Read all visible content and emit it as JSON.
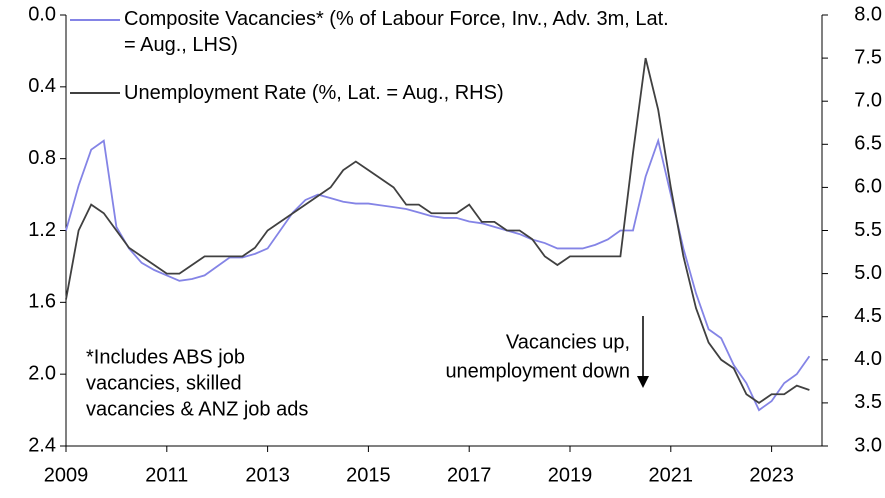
{
  "chart_data": {
    "type": "line",
    "x": [
      2009,
      2009.25,
      2009.5,
      2009.75,
      2010,
      2010.25,
      2010.5,
      2010.75,
      2011,
      2011.25,
      2011.5,
      2011.75,
      2012,
      2012.25,
      2012.5,
      2012.75,
      2013,
      2013.25,
      2013.5,
      2013.75,
      2014,
      2014.25,
      2014.5,
      2014.75,
      2015,
      2015.25,
      2015.5,
      2015.75,
      2016,
      2016.25,
      2016.5,
      2016.75,
      2017,
      2017.25,
      2017.5,
      2017.75,
      2018,
      2018.25,
      2018.5,
      2018.75,
      2019,
      2019.25,
      2019.5,
      2019.75,
      2020,
      2020.25,
      2020.5,
      2020.75,
      2021,
      2021.25,
      2021.5,
      2021.75,
      2022,
      2022.25,
      2022.5,
      2022.75,
      2023,
      2023.25,
      2023.5,
      2023.75
    ],
    "series": [
      {
        "name": "Composite Vacancies* (% of Labour Force, Inv., Adv. 3m, Lat. = Aug., LHS)",
        "color": "#8484e6",
        "values": [
          1.2,
          0.95,
          0.75,
          0.7,
          1.18,
          1.3,
          1.38,
          1.42,
          1.45,
          1.48,
          1.47,
          1.45,
          1.4,
          1.35,
          1.35,
          1.33,
          1.3,
          1.2,
          1.1,
          1.03,
          1.0,
          1.02,
          1.04,
          1.05,
          1.05,
          1.06,
          1.07,
          1.08,
          1.1,
          1.12,
          1.13,
          1.13,
          1.15,
          1.16,
          1.18,
          1.2,
          1.22,
          1.25,
          1.27,
          1.3,
          1.3,
          1.3,
          1.28,
          1.25,
          1.2,
          1.2,
          0.9,
          0.7,
          1.0,
          1.3,
          1.55,
          1.75,
          1.8,
          1.95,
          2.05,
          2.2,
          2.15,
          2.05,
          2.0,
          1.9
        ]
      },
      {
        "name": "Unemployment Rate (%, Lat. = Aug., RHS)",
        "color": "#404040",
        "axis": "y2",
        "values": [
          4.7,
          5.5,
          5.8,
          5.7,
          5.5,
          5.3,
          5.2,
          5.1,
          5.0,
          5.0,
          5.1,
          5.2,
          5.2,
          5.2,
          5.2,
          5.3,
          5.5,
          5.6,
          5.7,
          5.8,
          5.9,
          6.0,
          6.2,
          6.3,
          6.2,
          6.1,
          6.0,
          5.8,
          5.8,
          5.7,
          5.7,
          5.7,
          5.8,
          5.6,
          5.6,
          5.5,
          5.5,
          5.4,
          5.2,
          5.1,
          5.2,
          5.2,
          5.2,
          5.2,
          5.2,
          6.4,
          7.5,
          6.9,
          6.0,
          5.2,
          4.6,
          4.2,
          4.0,
          3.9,
          3.6,
          3.5,
          3.6,
          3.6,
          3.7,
          3.65
        ]
      }
    ],
    "xlim": [
      2009,
      2024
    ],
    "xticks": [
      2009,
      2011,
      2013,
      2015,
      2017,
      2019,
      2021,
      2023
    ],
    "ylim": [
      0,
      2.4
    ],
    "y_inverted": true,
    "yticks": [
      {
        "value": 0,
        "label": "0.0"
      },
      0.4,
      0.8,
      1.2,
      1.6,
      {
        "value": 2,
        "label": "2.0"
      },
      2.4
    ],
    "y2lim": [
      3,
      8
    ],
    "y2ticks": [
      {
        "value": 3,
        "label": "3.0"
      },
      3.5,
      {
        "value": 4,
        "label": "4.0"
      },
      4.5,
      {
        "value": 5,
        "label": "5.0"
      },
      5.5,
      {
        "value": 6,
        "label": "6.0"
      },
      6.5,
      {
        "value": 7,
        "label": "7.0"
      },
      7.5,
      {
        "value": 8,
        "label": "8.0"
      }
    ],
    "annotations": [
      {
        "lines": [
          "*Includes ABS job",
          "vacancies, skilled",
          "vacancies & ANZ job ads"
        ]
      },
      {
        "lines": [
          "Vacancies up,",
          "unemployment down"
        ]
      }
    ]
  }
}
